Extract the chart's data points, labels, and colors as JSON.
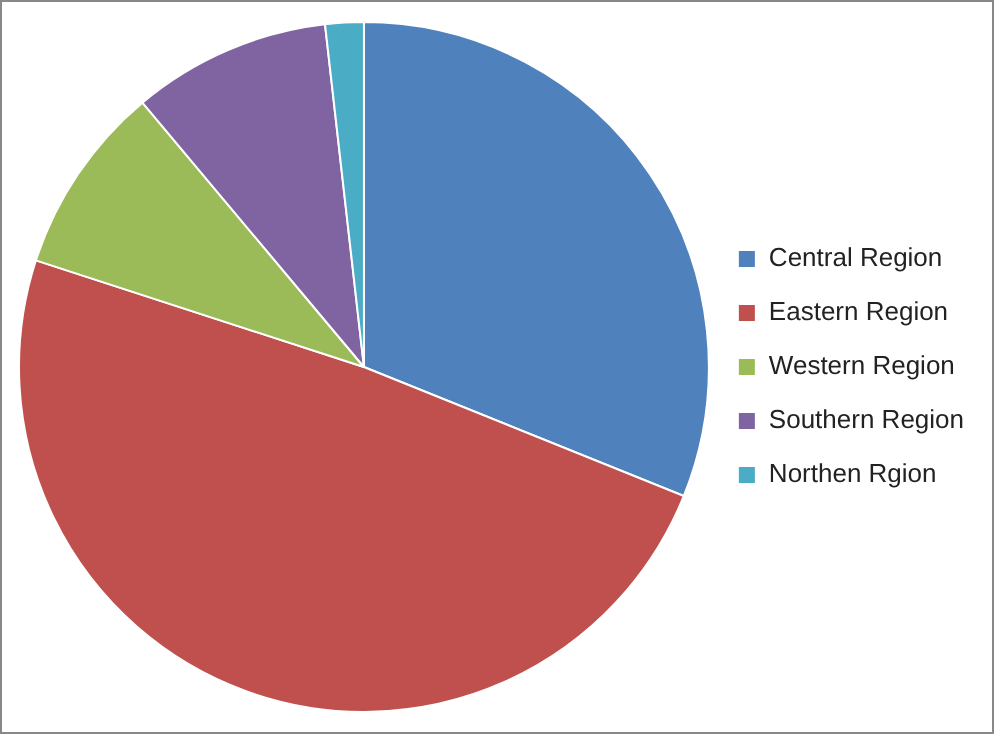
{
  "chart_data": {
    "type": "pie",
    "categories": [
      "Central Region",
      "Eastern Region",
      "Western Region",
      "Southern Region",
      "Northen Rgion"
    ],
    "values": [
      31.1,
      48.9,
      8.9,
      9.3,
      1.8
    ],
    "colors": [
      "#4f81bd",
      "#c0504d",
      "#9bbb59",
      "#8064a2",
      "#4bacc6"
    ],
    "legend": "right"
  }
}
